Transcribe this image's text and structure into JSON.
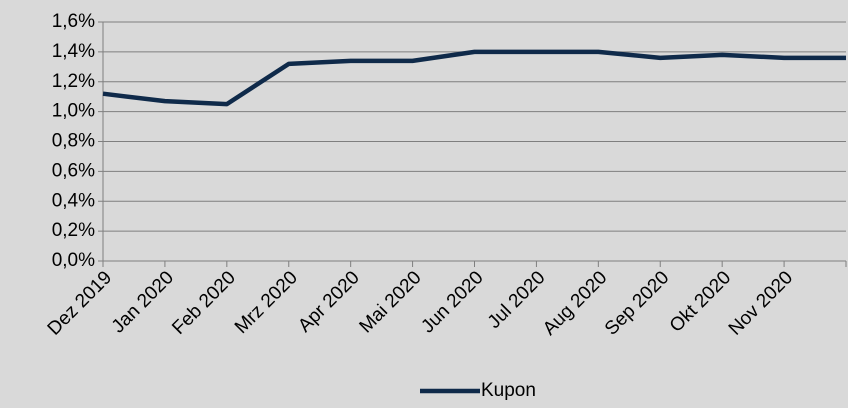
{
  "chart_data": {
    "type": "line",
    "categories": [
      "Dez 2019",
      "Jan 2020",
      "Feb 2020",
      "Mrz 2020",
      "Apr 2020",
      "Mai 2020",
      "Jun 2020",
      "Jul 2020",
      "Aug 2020",
      "Sep 2020",
      "Okt 2020",
      "Nov 2020",
      null
    ],
    "series": [
      {
        "name": "Kupon",
        "color": "#0f2a4a",
        "values": [
          1.12,
          1.07,
          1.05,
          1.32,
          1.34,
          1.34,
          1.4,
          1.4,
          1.4,
          1.36,
          1.38,
          1.36,
          1.36
        ]
      }
    ],
    "ylim": [
      0,
      1.6
    ],
    "yticks": [
      {
        "value": 0,
        "label": "0,0%"
      },
      {
        "value": 0.2,
        "label": "0,2%"
      },
      {
        "value": 0.4,
        "label": "0,4%"
      },
      {
        "value": 0.6,
        "label": "0,6%"
      },
      {
        "value": 0.8,
        "label": "0,8%"
      },
      {
        "value": 1.0,
        "label": "1,0%"
      },
      {
        "value": 1.2,
        "label": "1,2%"
      },
      {
        "value": 1.4,
        "label": "1,4%"
      },
      {
        "value": 1.6,
        "label": "1,6%"
      }
    ],
    "grid": true,
    "legend": "bottom"
  }
}
